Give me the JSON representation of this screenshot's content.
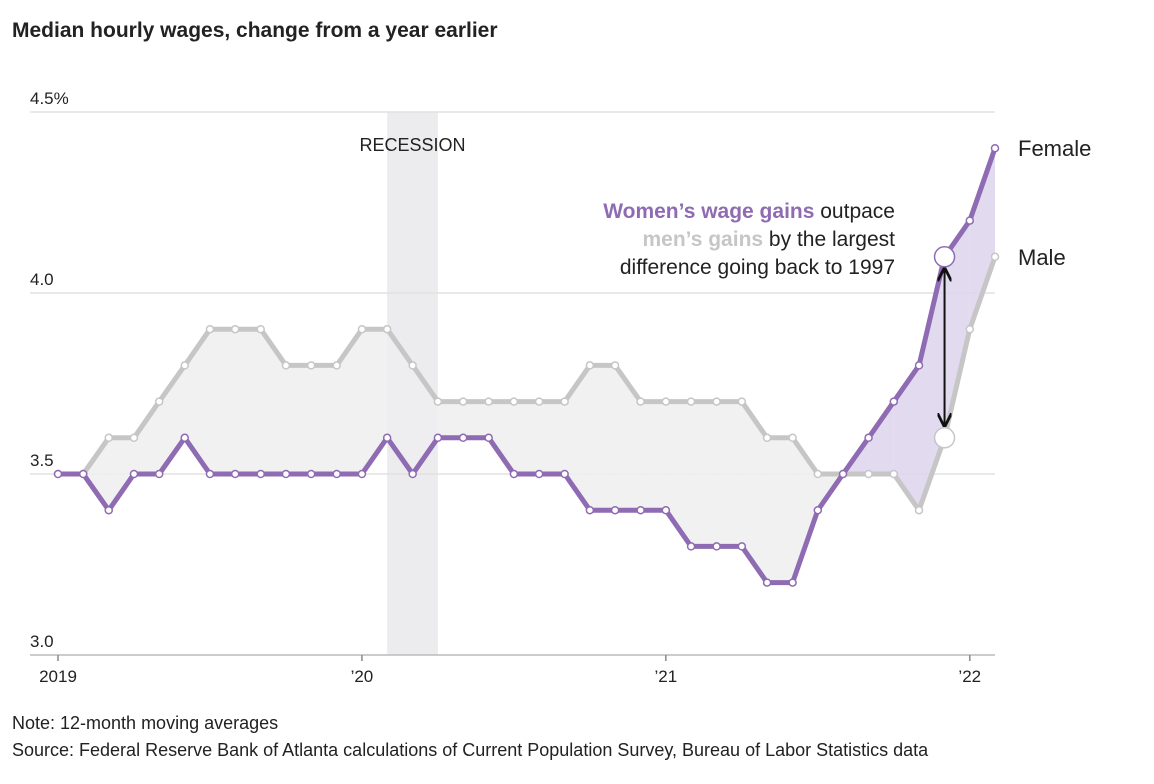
{
  "chart_data": {
    "type": "line",
    "title": "Median hourly wages, change from a year earlier",
    "x": [
      2019,
      2019.083,
      2019.167,
      2019.25,
      2019.333,
      2019.417,
      2019.5,
      2019.583,
      2019.667,
      2019.75,
      2019.833,
      2019.917,
      2020,
      2020.083,
      2020.167,
      2020.25,
      2020.333,
      2020.417,
      2020.5,
      2020.583,
      2020.667,
      2020.75,
      2020.833,
      2020.917,
      2021,
      2021.083,
      2021.167,
      2021.25,
      2021.333,
      2021.417,
      2021.5,
      2021.583,
      2021.667,
      2021.75,
      2021.833,
      2021.917,
      2022,
      2022.083
    ],
    "series": [
      {
        "name": "Female",
        "color": "#8e6bb3",
        "values": [
          3.5,
          3.5,
          3.4,
          3.5,
          3.5,
          3.6,
          3.5,
          3.5,
          3.5,
          3.5,
          3.5,
          3.5,
          3.5,
          3.6,
          3.5,
          3.6,
          3.6,
          3.6,
          3.5,
          3.5,
          3.5,
          3.4,
          3.4,
          3.4,
          3.4,
          3.3,
          3.3,
          3.3,
          3.2,
          3.2,
          3.4,
          3.5,
          3.6,
          3.7,
          3.8,
          4.1,
          4.2,
          4.4
        ]
      },
      {
        "name": "Male",
        "color": "#c6c6c6",
        "values": [
          3.5,
          3.5,
          3.6,
          3.6,
          3.7,
          3.8,
          3.9,
          3.9,
          3.9,
          3.8,
          3.8,
          3.8,
          3.9,
          3.9,
          3.8,
          3.7,
          3.7,
          3.7,
          3.7,
          3.7,
          3.7,
          3.8,
          3.8,
          3.7,
          3.7,
          3.7,
          3.7,
          3.7,
          3.6,
          3.6,
          3.5,
          3.5,
          3.5,
          3.5,
          3.4,
          3.6,
          3.9,
          4.1
        ]
      }
    ],
    "xlim": [
      2019,
      2022.083
    ],
    "xticks": [
      {
        "value": 2019,
        "label": "2019"
      },
      {
        "value": 2020,
        "label": "’20"
      },
      {
        "value": 2021,
        "label": "’21"
      },
      {
        "value": 2022,
        "label": "’22"
      }
    ],
    "ylim": [
      3.0,
      4.5
    ],
    "yticks": [
      {
        "value": 3.0,
        "label": "3.0"
      },
      {
        "value": 3.5,
        "label": "3.5"
      },
      {
        "value": 4.0,
        "label": "4.0"
      },
      {
        "value": 4.5,
        "label": "4.5%"
      }
    ],
    "grid": true,
    "recession": {
      "label": "RECESSION",
      "range": [
        2020.083,
        2020.25
      ]
    },
    "annotation": {
      "line1": {
        "highlight": "Women’s wage gains",
        "rest": " outpace"
      },
      "line2": {
        "highlight": "men’s gains",
        "rest": " by the largest"
      },
      "line3": "difference going back to 1997"
    },
    "note": "Note: 12-month moving averages",
    "source": "Source: Federal Reserve Bank of Atlanta calculations  of Current Population Survey, Bureau of Labor Statistics data"
  }
}
